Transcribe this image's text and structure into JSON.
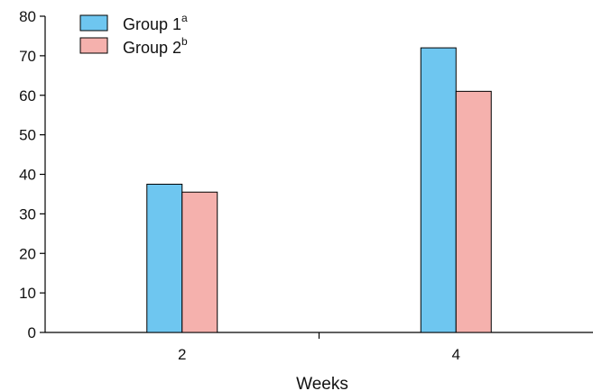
{
  "chart_data": {
    "type": "bar",
    "categories": [
      "2",
      "4"
    ],
    "series": [
      {
        "name": "Group 1",
        "name_superscript": "a",
        "color": "#6ec6f0",
        "values": [
          37.5,
          72
        ]
      },
      {
        "name": "Group 2",
        "name_superscript": "b",
        "color": "#f5b1ad",
        "values": [
          35.5,
          61
        ]
      }
    ],
    "title": "",
    "xlabel": "Weeks",
    "ylabel": "",
    "ylim": [
      0,
      80
    ],
    "yticks": [
      "0",
      "10",
      "20",
      "30",
      "40",
      "50",
      "60",
      "70",
      "80"
    ],
    "grid": false,
    "legend_position": "top-left"
  }
}
